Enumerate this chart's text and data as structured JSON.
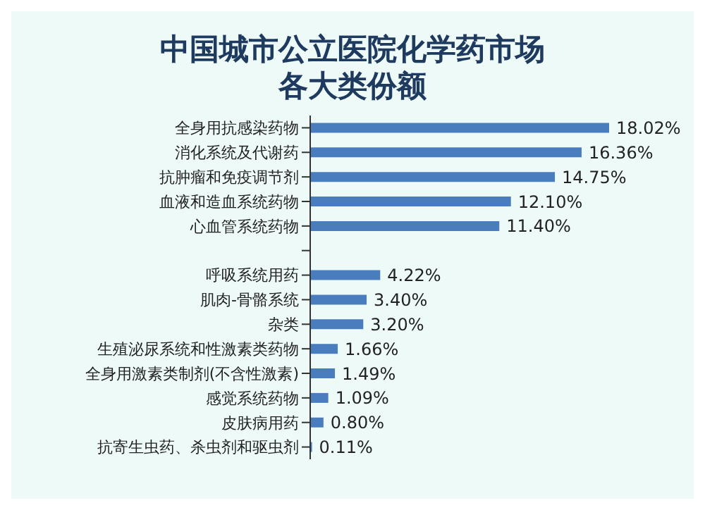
{
  "chart_data": {
    "type": "bar",
    "orientation": "horizontal",
    "title": "中国城市公立医院化学药市场各大类份额",
    "categories": [
      "全身用抗感染药物",
      "消化系统及代谢药",
      "抗肿瘤和免疫调节剂",
      "血液和造血系统药物",
      "心血管系统药物",
      null,
      "呼吸系统用药",
      "肌肉-骨骼系统",
      "杂类",
      "生殖泌尿系统和性激素类药物",
      "全身用激素类制剂(不含性激素)",
      "感觉系统药物",
      "皮肤病用药",
      "抗寄生虫药、杀虫剂和驱虫剂"
    ],
    "values": [
      18.02,
      16.36,
      14.75,
      12.1,
      11.4,
      null,
      4.22,
      3.4,
      3.2,
      1.66,
      1.49,
      1.09,
      0.8,
      0.11
    ],
    "value_labels": [
      "18.02%",
      "16.36%",
      "14.75%",
      "12.10%",
      "11.40%",
      null,
      "4.22%",
      "3.40%",
      "3.20%",
      "1.66%",
      "1.49%",
      "1.09%",
      "0.80%",
      "0.11%"
    ],
    "color": "#4a7dbd",
    "grid": false,
    "legend": false
  }
}
